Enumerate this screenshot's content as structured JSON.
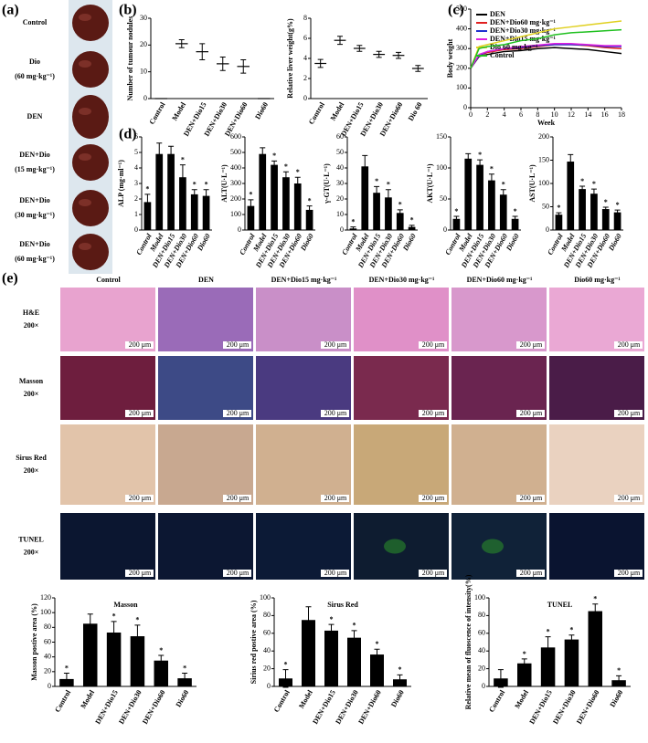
{
  "panel_labels": [
    "(a)",
    "(b)",
    "(c)",
    "(d)",
    "(e)"
  ],
  "livers": [
    {
      "lines": [
        "Control"
      ]
    },
    {
      "lines": [
        "Dio",
        "(60 mg·kg⁻¹)"
      ]
    },
    {
      "lines": [
        "DEN"
      ]
    },
    {
      "lines": [
        "DEN+Dio",
        "(15 mg·kg⁻¹)"
      ]
    },
    {
      "lines": [
        "DEN+Dio",
        "(30 mg·kg⁻¹)"
      ]
    },
    {
      "lines": [
        "DEN+Dio",
        "(60 mg·kg⁻¹)"
      ]
    }
  ],
  "histology": {
    "columns": [
      "Control",
      "DEN",
      "DEN+Dio15 mg·kg⁻¹",
      "DEN+Dio30 mg·kg⁻¹",
      "DEN+Dio60 mg·kg⁻¹",
      "Dio60 mg·kg⁻¹"
    ],
    "rows": [
      {
        "stain": "H&E",
        "magnification": "200×"
      },
      {
        "stain": "Masson",
        "magnification": "200×"
      },
      {
        "stain": "Sirus Red",
        "magnification": "200×"
      },
      {
        "stain": "TUNEL",
        "magnification": "200×"
      }
    ],
    "scale_bar": "200 μm"
  },
  "chart_data": [
    {
      "type": "dot",
      "ylabel": "Number of tumour nodules",
      "categories": [
        "Control",
        "Model",
        "DEN+Dio15",
        "DEN+Dio30",
        "DEN+Dio60",
        "Dio60"
      ],
      "values": [
        0,
        20.5,
        17.5,
        13,
        12,
        0
      ],
      "errors": [
        0,
        1.5,
        3,
        2.5,
        2.5,
        0
      ],
      "ylim": [
        0,
        30
      ],
      "yticks": [
        0,
        10,
        20,
        30
      ]
    },
    {
      "type": "dot",
      "ylabel": "Relative liver weight(g%)",
      "categories": [
        "Control",
        "Model",
        "DEN+Dio15",
        "DEN+Dio30",
        "DEN+Dio60",
        "Dio 60"
      ],
      "values": [
        3.5,
        5.8,
        5.0,
        4.4,
        4.3,
        3.0
      ],
      "errors": [
        0.4,
        0.4,
        0.3,
        0.3,
        0.3,
        0.3
      ],
      "ylim": [
        0,
        8
      ],
      "yticks": [
        0,
        2,
        4,
        6,
        8
      ]
    },
    {
      "type": "line",
      "xlabel": "Week",
      "ylabel": "Body weight",
      "x": [
        0,
        1,
        2,
        4,
        6,
        8,
        10,
        12,
        14,
        16,
        18
      ],
      "xlim": [
        0,
        18
      ],
      "xticks": [
        0,
        2,
        4,
        6,
        8,
        10,
        12,
        14,
        16,
        18
      ],
      "ylim": [
        0,
        500
      ],
      "yticks": [
        0,
        100,
        200,
        300,
        400,
        500
      ],
      "series": [
        {
          "name": "DEN",
          "color": "#000000",
          "values": [
            200,
            260,
            270,
            285,
            290,
            300,
            305,
            300,
            295,
            285,
            275
          ]
        },
        {
          "name": "DEN+Dio60 mg·kg⁻¹",
          "color": "#e02020",
          "values": [
            200,
            265,
            280,
            295,
            300,
            310,
            320,
            320,
            315,
            305,
            300
          ]
        },
        {
          "name": "DEN+Dio30 mg·kg⁻¹",
          "color": "#2030d0",
          "values": [
            200,
            265,
            285,
            300,
            305,
            315,
            320,
            320,
            318,
            310,
            310
          ]
        },
        {
          "name": "DEN+Dio15 mg·kg⁻¹",
          "color": "#e020e0",
          "values": [
            200,
            270,
            285,
            300,
            310,
            318,
            325,
            325,
            320,
            315,
            315
          ]
        },
        {
          "name": "Dio 60 mg·kg⁻¹",
          "color": "#e0d020",
          "values": [
            200,
            310,
            320,
            340,
            360,
            380,
            400,
            410,
            420,
            430,
            440
          ]
        },
        {
          "name": "Control",
          "color": "#20c020",
          "values": [
            200,
            300,
            310,
            320,
            340,
            350,
            370,
            380,
            385,
            390,
            395
          ]
        }
      ]
    },
    {
      "type": "bar",
      "ylabel": "ALP (mg·ml⁻¹)",
      "categories": [
        "Control",
        "Model",
        "DEN+Dio15",
        "DEN+Dio30",
        "DEN+Dio60",
        "Dio60"
      ],
      "values": [
        1.8,
        4.9,
        4.9,
        3.4,
        2.3,
        2.2
      ],
      "errors": [
        0.5,
        0.7,
        0.5,
        0.8,
        0.3,
        0.4
      ],
      "significance": [
        "*",
        null,
        null,
        "*",
        "*",
        "*"
      ],
      "ylim": [
        0,
        6
      ],
      "yticks": [
        0,
        1,
        2,
        3,
        4,
        5,
        6
      ]
    },
    {
      "type": "bar",
      "ylabel": "ALT(U·L⁻¹)",
      "categories": [
        "Control",
        "Model",
        "DEN+Dio15",
        "DEN+Dio30",
        "DEN+Dio60",
        "Dio60"
      ],
      "values": [
        155,
        490,
        420,
        340,
        300,
        130
      ],
      "errors": [
        40,
        40,
        25,
        35,
        40,
        25
      ],
      "significance": [
        "*",
        null,
        "*",
        "*",
        "*",
        "*"
      ],
      "ylim": [
        0,
        600
      ],
      "yticks": [
        0,
        100,
        200,
        300,
        400,
        500,
        600
      ]
    },
    {
      "type": "bar",
      "ylabel": "γ-GT(U·L⁻¹)",
      "categories": [
        "Control",
        "Model",
        "DEN+Dio15",
        "DEN+Dio30",
        "DEN+Dio60",
        "Dio60"
      ],
      "values": [
        1,
        41,
        24,
        21,
        11,
        2
      ],
      "errors": [
        1,
        7,
        4,
        5,
        2,
        1
      ],
      "significance": [
        "*",
        null,
        "*",
        "*",
        "*",
        "*"
      ],
      "ylim": [
        0,
        60
      ],
      "yticks": [
        0,
        10,
        20,
        30,
        40,
        50,
        60
      ]
    },
    {
      "type": "bar",
      "ylabel": "AKT(U·L⁻¹)",
      "categories": [
        "Control",
        "Model",
        "DEN+Dio15",
        "DEN+Dio30",
        "DEN+Dio60",
        "Dio60"
      ],
      "values": [
        18,
        115,
        105,
        80,
        57,
        18
      ],
      "errors": [
        4,
        8,
        8,
        10,
        8,
        4
      ],
      "significance": [
        "*",
        null,
        "*",
        "*",
        "*",
        "*"
      ],
      "ylim": [
        0,
        150
      ],
      "yticks": [
        0,
        50,
        100,
        150
      ]
    },
    {
      "type": "bar",
      "ylabel": "AST(U·L⁻¹)",
      "categories": [
        "Control",
        "Model",
        "DEN+Dio15",
        "DEN+Dio30",
        "DEN+Dio60",
        "Dio60"
      ],
      "values": [
        33,
        147,
        88,
        78,
        45,
        38
      ],
      "errors": [
        4,
        15,
        6,
        10,
        4,
        5
      ],
      "significance": [
        "*",
        null,
        "*",
        "*",
        "*",
        "*"
      ],
      "ylim": [
        0,
        200
      ],
      "yticks": [
        0,
        50,
        100,
        150,
        200
      ]
    },
    {
      "type": "bar",
      "title": "Masson",
      "ylabel": "Masson postive area (%)",
      "categories": [
        "Control",
        "Model",
        "DEN+Dio15",
        "DEN+Dio30",
        "DEN+Dio60",
        "Dio60"
      ],
      "values": [
        10,
        85,
        73,
        68,
        35,
        11
      ],
      "errors": [
        8,
        13,
        15,
        15,
        7,
        7
      ],
      "significance": [
        "*",
        null,
        "*",
        "*",
        "*",
        "*"
      ],
      "ylim": [
        0,
        120
      ],
      "yticks": [
        0,
        20,
        40,
        60,
        80,
        100,
        120
      ]
    },
    {
      "type": "bar",
      "title": "Sirus Red",
      "ylabel": "Sirius red postive area (%)",
      "categories": [
        "Control",
        "Model",
        "DEN+Dio15",
        "DEN+Dio30",
        "DEN+Dio60",
        "Dio60"
      ],
      "values": [
        9,
        75,
        63,
        55,
        36,
        8
      ],
      "errors": [
        10,
        15,
        7,
        8,
        6,
        5
      ],
      "significance": [
        "*",
        null,
        "*",
        "*",
        "*",
        "*"
      ],
      "ylim": [
        0,
        100
      ],
      "yticks": [
        0,
        20,
        40,
        60,
        80,
        100
      ]
    },
    {
      "type": "bar",
      "title": "TUNEL",
      "ylabel": "Relative mean of fluoscence of intensity(%)",
      "categories": [
        "Control",
        "Model",
        "DEN+Dio15",
        "DEN+Dio30",
        "DEN+Dio60",
        "Dio60"
      ],
      "values": [
        9,
        26,
        44,
        53,
        85,
        7
      ],
      "errors": [
        10,
        5,
        12,
        5,
        8,
        5
      ],
      "significance": [
        null,
        "*",
        "*",
        "*",
        "*",
        "*"
      ],
      "ylim": [
        0,
        100
      ],
      "yticks": [
        0,
        20,
        40,
        60,
        80,
        100
      ]
    }
  ]
}
